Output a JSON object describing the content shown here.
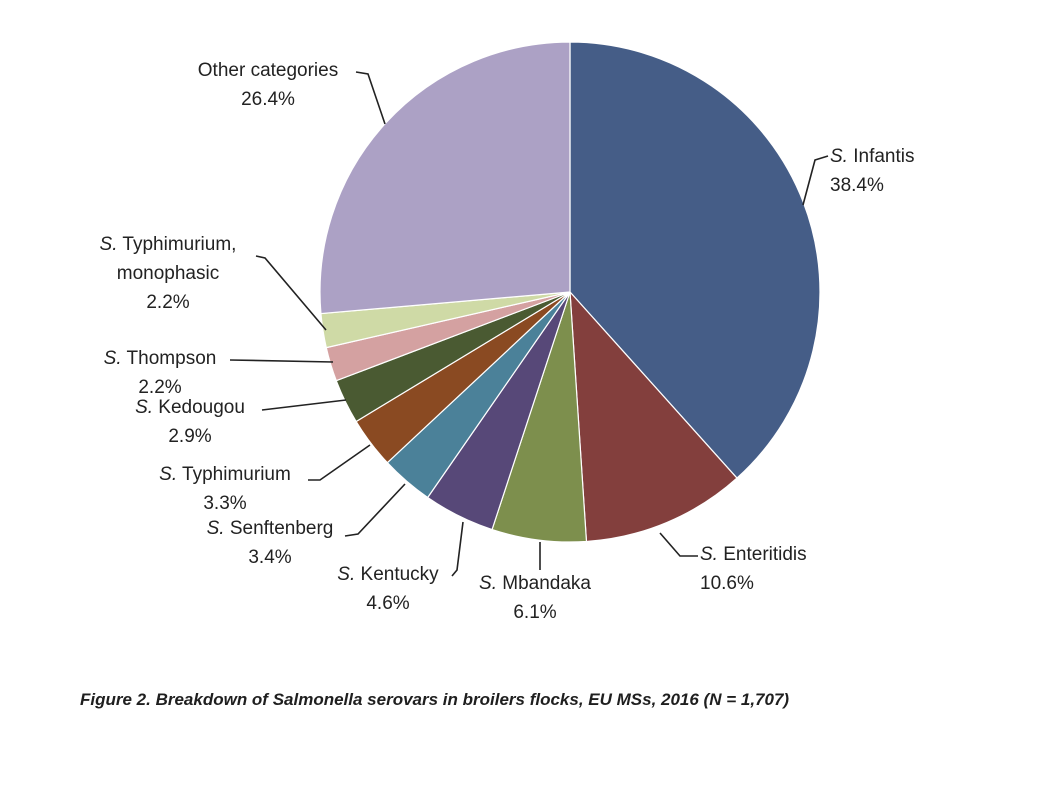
{
  "chart_data": {
    "type": "pie",
    "title": "",
    "slices": [
      {
        "label": "S. Infantis",
        "value": 38.4,
        "display": "38.4%",
        "color": "#455d87"
      },
      {
        "label": "S. Enteritidis",
        "value": 10.6,
        "display": "10.6%",
        "color": "#833f3d"
      },
      {
        "label": "S. Mbandaka",
        "value": 6.1,
        "display": "6.1%",
        "color": "#7d8f4d"
      },
      {
        "label": "S. Kentucky",
        "value": 4.6,
        "display": "4.6%",
        "color": "#574878"
      },
      {
        "label": "S. Senftenberg",
        "value": 3.4,
        "display": "3.4%",
        "color": "#4b8199"
      },
      {
        "label": "S. Typhimurium",
        "value": 3.3,
        "display": "3.3%",
        "color": "#8a4a22"
      },
      {
        "label": "S. Kedougou",
        "value": 2.9,
        "display": "2.9%",
        "color": "#4a5a32"
      },
      {
        "label": "S. Thompson",
        "value": 2.2,
        "display": "2.2%",
        "color": "#d4a1a1"
      },
      {
        "label": "S. Typhimurium, monophasic",
        "value": 2.2,
        "display": "2.2%",
        "color": "#cfdaa6"
      },
      {
        "label": "Other categories",
        "value": 26.4,
        "display": "26.4%",
        "color": "#aca1c5"
      }
    ]
  },
  "caption": "Figure 2. Breakdown of Salmonella serovars in broilers flocks, EU MSs, 2016 (N = 1,707)"
}
